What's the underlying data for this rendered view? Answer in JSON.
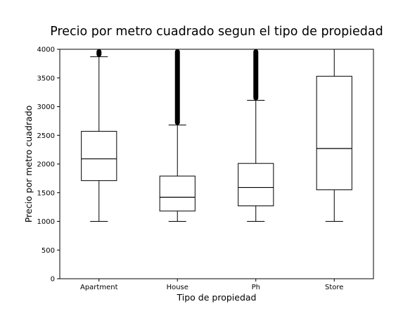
{
  "chart_data": {
    "type": "box",
    "title": "Precio por metro cuadrado segun el tipo de propiedad",
    "xlabel": "Tipo de propiedad",
    "ylabel": "Precio por metro cuadrado",
    "ylim": [
      0,
      4000
    ],
    "yticks": [
      0,
      500,
      1000,
      1500,
      2000,
      2500,
      3000,
      3500,
      4000
    ],
    "grid": false,
    "categories": [
      "Apartment",
      "House",
      "Ph",
      "Store"
    ],
    "boxes": [
      {
        "category": "Apartment",
        "whisker_low": 1000,
        "q1": 1710,
        "median": 2090,
        "q3": 2570,
        "whisker_high": 3870,
        "outliers_from": 3870,
        "outliers_to": 4000
      },
      {
        "category": "House",
        "whisker_low": 1000,
        "q1": 1180,
        "median": 1420,
        "q3": 1790,
        "whisker_high": 2680,
        "outliers_from": 2680,
        "outliers_to": 4000
      },
      {
        "category": "Ph",
        "whisker_low": 1000,
        "q1": 1270,
        "median": 1590,
        "q3": 2010,
        "whisker_high": 3110,
        "outliers_from": 3110,
        "outliers_to": 4000
      },
      {
        "category": "Store",
        "whisker_low": 1000,
        "q1": 1550,
        "median": 2270,
        "q3": 3530,
        "whisker_high": 4000,
        "outliers_from": null,
        "outliers_to": null
      }
    ]
  }
}
